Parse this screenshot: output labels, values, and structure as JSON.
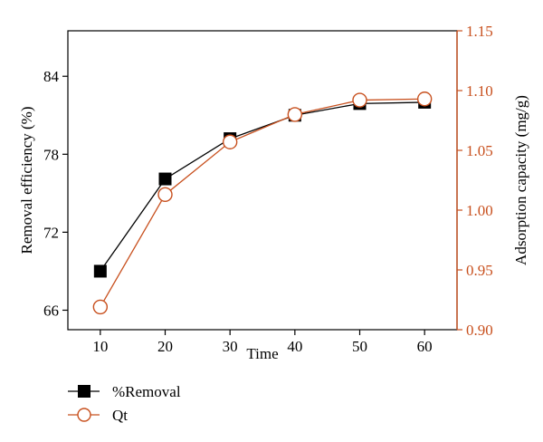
{
  "chart_data": {
    "type": "line",
    "xlabel": "Time",
    "x": [
      10,
      20,
      30,
      40,
      50,
      60
    ],
    "xticks": [
      "10",
      "20",
      "30",
      "40",
      "50",
      "60"
    ],
    "xlim": [
      5,
      65
    ],
    "y_left": {
      "label": "Removal efficiency (%)",
      "ylim": [
        64.5,
        87.5
      ],
      "ticks": [
        66,
        72,
        78,
        84
      ],
      "tick_labels": [
        "66",
        "72",
        "78",
        "84"
      ],
      "color": "#000000"
    },
    "y_right": {
      "label": "Adsorption capacity (mg/g)",
      "ylim": [
        0.9,
        1.15
      ],
      "ticks": [
        0.9,
        0.95,
        1.0,
        1.05,
        1.1,
        1.15
      ],
      "tick_labels": [
        "0.90",
        "0.95",
        "1.00",
        "1.05",
        "1.10",
        "1.15"
      ],
      "color": "#c8501e"
    },
    "series": [
      {
        "name": "%Removal",
        "axis": "left",
        "marker": "filled-square",
        "color": "#000000",
        "values": [
          69.0,
          76.1,
          79.2,
          81.0,
          81.9,
          82.0
        ]
      },
      {
        "name": "Qt",
        "axis": "right",
        "marker": "open-circle",
        "color": "#c8501e",
        "values": [
          0.919,
          1.013,
          1.057,
          1.08,
          1.092,
          1.093
        ]
      }
    ],
    "grid": false,
    "legend_position": "bottom-left"
  }
}
